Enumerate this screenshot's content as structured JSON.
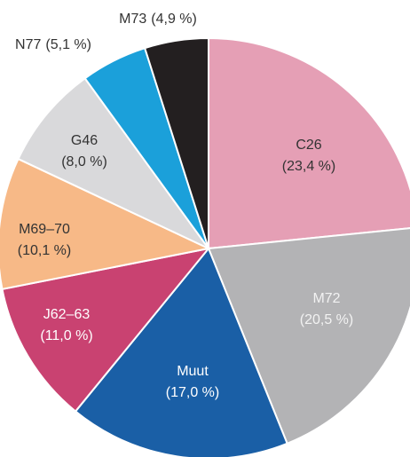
{
  "chart_data": {
    "type": "pie",
    "categories": [
      "C26",
      "M72",
      "Muut",
      "J62–63",
      "M69–70",
      "G46",
      "N77",
      "M73"
    ],
    "values": [
      23.4,
      20.5,
      17.0,
      11.0,
      10.1,
      8.0,
      5.1,
      4.9
    ],
    "value_labels": [
      "(23,4 %)",
      "(20,5 %)",
      "(17,0 %)",
      "(11,0 %)",
      "(10,1 %)",
      "(8,0 %)",
      "(5,1 %)",
      "(4,9 %)"
    ],
    "colors": [
      "#e59fb5",
      "#b3b3b5",
      "#1a5fa6",
      "#c94271",
      "#f7b987",
      "#d9d9db",
      "#1ba0da",
      "#231f20"
    ]
  }
}
